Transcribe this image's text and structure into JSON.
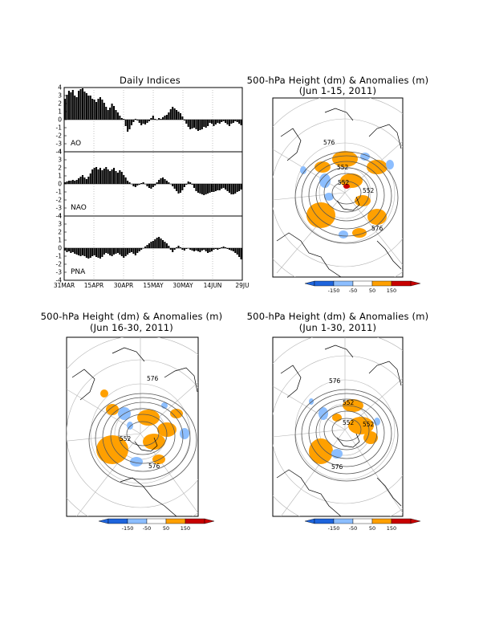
{
  "indices_panel": {
    "title": "Daily Indices",
    "x_tick_labels": [
      "31MAR",
      "15APR",
      "30APR",
      "15MAY",
      "30MAY",
      "14JUN",
      "29JU"
    ],
    "y_tick_labels": [
      "4",
      "3",
      "2",
      "1",
      "0",
      "-1",
      "-2",
      "-3",
      "-4"
    ]
  },
  "maps": [
    {
      "title_line1": "500-hPa Height (dm) & Anomalies (m)",
      "title_line2": "(Jun 1-15, 2011)",
      "contour_labels": [
        "576",
        "552",
        "552",
        "552",
        "576"
      ]
    },
    {
      "title_line1": "500-hPa Height (dm) & Anomalies (m)",
      "title_line2": "(Jun 16-30, 2011)",
      "contour_labels": [
        "576",
        "552",
        "576"
      ]
    },
    {
      "title_line1": "500-hPa Height (dm) & Anomalies (m)",
      "title_line2": "(Jun 1-30, 2011)",
      "contour_labels": [
        "576",
        "552",
        "552",
        "552",
        "576"
      ]
    }
  ],
  "colorbar": {
    "labels": [
      "-150",
      "-50",
      "50",
      "150"
    ],
    "colors": [
      "#1e64dc",
      "#8cbeff",
      "#ffffff",
      "#ffa000",
      "#c80000"
    ]
  },
  "chart_data": [
    {
      "type": "bar",
      "name": "AO",
      "ylim": [
        -4,
        4
      ],
      "values": [
        2.6,
        3.1,
        3.6,
        3.4,
        3.7,
        3.0,
        2.8,
        3.6,
        3.8,
        3.9,
        3.5,
        3.3,
        3.0,
        3.0,
        2.6,
        2.5,
        2.2,
        2.6,
        2.8,
        2.5,
        2.1,
        1.6,
        1.2,
        1.5,
        2.0,
        1.7,
        1.2,
        0.9,
        0.5,
        0.2,
        0.1,
        -0.8,
        -1.5,
        -1.2,
        -0.7,
        -0.3,
        0.1,
        -0.1,
        -0.4,
        -0.7,
        -0.5,
        -0.6,
        -0.4,
        -0.2,
        0.2,
        0.5,
        0.1,
        0.0,
        0.2,
        0.1,
        0.3,
        0.5,
        0.6,
        0.9,
        1.3,
        1.6,
        1.4,
        1.2,
        1.0,
        0.8,
        0.4,
        -0.1,
        -0.5,
        -0.9,
        -1.2,
        -1.1,
        -1.0,
        -1.2,
        -1.4,
        -1.3,
        -1.2,
        -0.9,
        -1.0,
        -0.8,
        -0.4,
        -0.5,
        -0.8,
        -0.6,
        -0.4,
        -0.5,
        -0.3,
        -0.2,
        -0.4,
        -0.6,
        -0.8,
        -0.5,
        -0.4,
        -0.2,
        -0.3,
        -0.5,
        -0.7
      ]
    },
    {
      "type": "bar",
      "name": "NAO",
      "ylim": [
        -4,
        4
      ],
      "values": [
        0.2,
        0.3,
        0.4,
        0.4,
        0.5,
        0.4,
        0.5,
        0.7,
        0.9,
        1.1,
        0.8,
        0.6,
        0.9,
        1.3,
        1.8,
        2.0,
        2.1,
        1.8,
        2.0,
        1.7,
        1.9,
        2.1,
        1.8,
        1.6,
        1.8,
        2.0,
        1.6,
        1.4,
        1.7,
        1.5,
        1.1,
        0.8,
        0.4,
        0.2,
        0.0,
        -0.3,
        -0.4,
        -0.2,
        -0.1,
        0.1,
        0.2,
        0.0,
        -0.3,
        -0.5,
        -0.6,
        -0.4,
        -0.2,
        0.2,
        0.5,
        0.7,
        0.8,
        0.6,
        0.4,
        0.2,
        0.0,
        -0.3,
        -0.6,
        -0.9,
        -1.2,
        -1.1,
        -0.8,
        -0.4,
        -0.1,
        0.3,
        0.2,
        -0.1,
        -0.5,
        -0.9,
        -1.1,
        -1.2,
        -1.3,
        -1.4,
        -1.3,
        -1.2,
        -1.1,
        -1.0,
        -1.0,
        -0.9,
        -0.8,
        -0.8,
        -0.6,
        -0.5,
        -0.7,
        -0.9,
        -1.1,
        -1.3,
        -1.3,
        -1.2,
        -1.0,
        -0.9,
        -0.7
      ]
    },
    {
      "type": "bar",
      "name": "PNA",
      "ylim": [
        -4,
        4
      ],
      "values": [
        -0.3,
        -0.5,
        -0.4,
        -0.6,
        -0.5,
        -0.7,
        -0.8,
        -0.9,
        -1.0,
        -0.9,
        -1.0,
        -1.2,
        -1.3,
        -1.2,
        -1.0,
        -0.9,
        -1.1,
        -1.2,
        -1.3,
        -1.1,
        -0.8,
        -0.6,
        -0.7,
        -0.9,
        -1.0,
        -0.8,
        -0.7,
        -0.6,
        -0.8,
        -1.0,
        -1.2,
        -1.0,
        -0.8,
        -0.6,
        -0.5,
        -0.7,
        -0.9,
        -0.6,
        -0.4,
        -0.2,
        0.0,
        0.2,
        0.4,
        0.6,
        0.8,
        0.9,
        1.1,
        1.3,
        1.4,
        1.2,
        1.0,
        0.8,
        0.6,
        0.3,
        -0.2,
        -0.5,
        -0.2,
        0.1,
        0.3,
        0.1,
        -0.2,
        -0.3,
        -0.1,
        0.0,
        -0.2,
        -0.3,
        -0.4,
        -0.3,
        -0.4,
        -0.5,
        -0.3,
        -0.2,
        -0.4,
        -0.6,
        -0.5,
        -0.4,
        -0.2,
        -0.1,
        -0.2,
        -0.1,
        0.1,
        0.2,
        0.1,
        -0.1,
        -0.2,
        -0.3,
        -0.4,
        -0.6,
        -0.8,
        -1.1,
        -1.4
      ]
    }
  ]
}
